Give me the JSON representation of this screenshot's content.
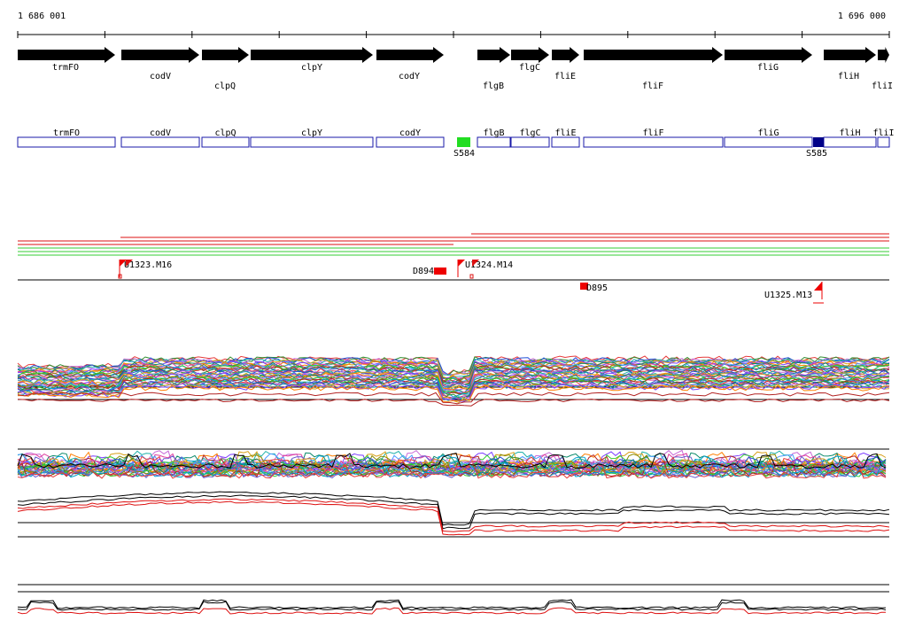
{
  "coords": {
    "start": "1 686 001",
    "end": "1 696 000"
  },
  "genes": [
    {
      "name": "trmFO",
      "row": "top"
    },
    {
      "name": "codV",
      "row": "bottom"
    },
    {
      "name": "clpQ",
      "row": "bottom"
    },
    {
      "name": "clpY",
      "row": "top"
    },
    {
      "name": "codY",
      "row": "bottom"
    },
    {
      "name": "flgB",
      "row": "bottom"
    },
    {
      "name": "flgC",
      "row": "top"
    },
    {
      "name": "fliE",
      "row": "bottom"
    },
    {
      "name": "fliF",
      "row": "bottom"
    },
    {
      "name": "fliG",
      "row": "top"
    },
    {
      "name": "fliH",
      "row": "bottom"
    },
    {
      "name": "fliI",
      "row": "bottom"
    }
  ],
  "features": [
    {
      "label": "S584",
      "color": "#22dd22"
    },
    {
      "label": "S585",
      "color": "#000088"
    }
  ],
  "markers": [
    {
      "label": "U1323.M16",
      "color": "#ee0000"
    },
    {
      "label": "D894",
      "color": "#ee0000"
    },
    {
      "label": "U1324.M14",
      "color": "#ee0000"
    },
    {
      "label": "D895",
      "color": "#ee0000"
    },
    {
      "label": "U1325.M13",
      "color": "#ee0000"
    }
  ],
  "colors": {
    "gene_fill": "#000000",
    "box_stroke": "#1a1aa8",
    "accent_red": "#dd1111",
    "track_green": "#33cc33"
  }
}
